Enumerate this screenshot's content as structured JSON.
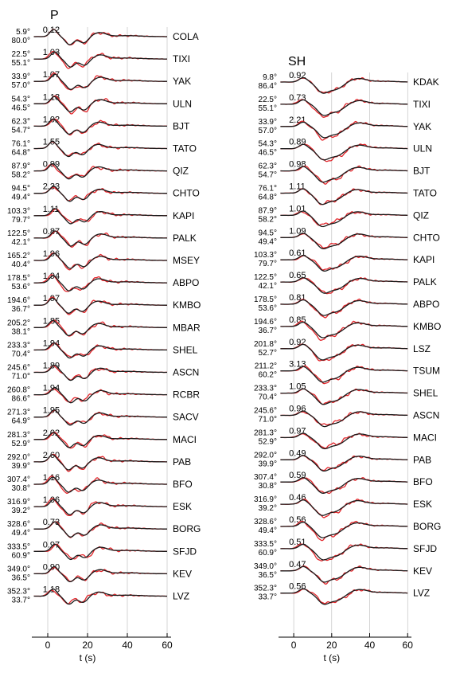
{
  "chart_data": [
    {
      "type": "line",
      "title": "P",
      "xlabel": "t (s)",
      "xlim": [
        -8,
        62
      ],
      "xticks": [
        0,
        20,
        40,
        60
      ],
      "grid": "vertical",
      "series_colors": {
        "observed": "#e3262b",
        "synthetic": "#1a1a1a"
      },
      "stations": [
        {
          "name": "COLA",
          "azimuth": "5.9°",
          "distance": "80.0°",
          "amp": "0.12"
        },
        {
          "name": "TIXI",
          "azimuth": "22.5°",
          "distance": "55.1°",
          "amp": "1.03"
        },
        {
          "name": "YAK",
          "azimuth": "33.9°",
          "distance": "57.0°",
          "amp": "1.07"
        },
        {
          "name": "ULN",
          "azimuth": "54.3°",
          "distance": "46.5°",
          "amp": "1.18"
        },
        {
          "name": "BJT",
          "azimuth": "62.3°",
          "distance": "54.7°",
          "amp": "1.02"
        },
        {
          "name": "TATO",
          "azimuth": "76.1°",
          "distance": "64.8°",
          "amp": "1.55"
        },
        {
          "name": "QIZ",
          "azimuth": "87.9°",
          "distance": "58.2°",
          "amp": "0.99"
        },
        {
          "name": "CHTO",
          "azimuth": "94.5°",
          "distance": "49.4°",
          "amp": "2.33"
        },
        {
          "name": "KAPI",
          "azimuth": "103.3°",
          "distance": "79.7°",
          "amp": "1.11"
        },
        {
          "name": "PALK",
          "azimuth": "122.5°",
          "distance": "42.1°",
          "amp": "0.87"
        },
        {
          "name": "MSEY",
          "azimuth": "165.2°",
          "distance": "40.4°",
          "amp": "1.96"
        },
        {
          "name": "ABPO",
          "azimuth": "178.5°",
          "distance": "53.6°",
          "amp": "1.94"
        },
        {
          "name": "KMBO",
          "azimuth": "194.6°",
          "distance": "36.7°",
          "amp": "1.97"
        },
        {
          "name": "MBAR",
          "azimuth": "205.2°",
          "distance": "38.1°",
          "amp": "1.85"
        },
        {
          "name": "SHEL",
          "azimuth": "233.3°",
          "distance": "70.4°",
          "amp": "1.94"
        },
        {
          "name": "ASCN",
          "azimuth": "245.6°",
          "distance": "71.0°",
          "amp": "1.89"
        },
        {
          "name": "RCBR",
          "azimuth": "260.8°",
          "distance": "86.6°",
          "amp": "1.94"
        },
        {
          "name": "SACV",
          "azimuth": "271.3°",
          "distance": "64.9°",
          "amp": "1.95"
        },
        {
          "name": "MACI",
          "azimuth": "281.3°",
          "distance": "52.9°",
          "amp": "2.02"
        },
        {
          "name": "PAB",
          "azimuth": "292.0°",
          "distance": "39.9°",
          "amp": "2.60"
        },
        {
          "name": "BFO",
          "azimuth": "307.4°",
          "distance": "30.8°",
          "amp": "1.16"
        },
        {
          "name": "ESK",
          "azimuth": "316.9°",
          "distance": "39.2°",
          "amp": "1.06"
        },
        {
          "name": "BORG",
          "azimuth": "328.6°",
          "distance": "49.4°",
          "amp": "0.73"
        },
        {
          "name": "SFJD",
          "azimuth": "333.5°",
          "distance": "60.9°",
          "amp": "0.97"
        },
        {
          "name": "KEV",
          "azimuth": "349.0°",
          "distance": "36.5°",
          "amp": "0.90"
        },
        {
          "name": "LVZ",
          "azimuth": "352.3°",
          "distance": "33.7°",
          "amp": "1.18"
        }
      ]
    },
    {
      "type": "line",
      "title": "SH",
      "xlabel": "t (s)",
      "xlim": [
        -8,
        62
      ],
      "xticks": [
        0,
        20,
        40,
        60
      ],
      "grid": "vertical",
      "series_colors": {
        "observed": "#e3262b",
        "synthetic": "#1a1a1a"
      },
      "stations": [
        {
          "name": "KDAK",
          "azimuth": "9.8°",
          "distance": "86.4°",
          "amp": "0.92"
        },
        {
          "name": "TIXI",
          "azimuth": "22.5°",
          "distance": "55.1°",
          "amp": "0.73"
        },
        {
          "name": "YAK",
          "azimuth": "33.9°",
          "distance": "57.0°",
          "amp": "2.21"
        },
        {
          "name": "ULN",
          "azimuth": "54.3°",
          "distance": "46.5°",
          "amp": "0.89"
        },
        {
          "name": "BJT",
          "azimuth": "62.3°",
          "distance": "54.7°",
          "amp": "0.98"
        },
        {
          "name": "TATO",
          "azimuth": "76.1°",
          "distance": "64.8°",
          "amp": "1.11"
        },
        {
          "name": "QIZ",
          "azimuth": "87.9°",
          "distance": "58.2°",
          "amp": "1.01"
        },
        {
          "name": "CHTO",
          "azimuth": "94.5°",
          "distance": "49.4°",
          "amp": "1.09"
        },
        {
          "name": "KAPI",
          "azimuth": "103.3°",
          "distance": "79.7°",
          "amp": "0.61"
        },
        {
          "name": "PALK",
          "azimuth": "122.5°",
          "distance": "42.1°",
          "amp": "0.65"
        },
        {
          "name": "ABPO",
          "azimuth": "178.5°",
          "distance": "53.6°",
          "amp": "0.81"
        },
        {
          "name": "KMBO",
          "azimuth": "194.6°",
          "distance": "36.7°",
          "amp": "0.85"
        },
        {
          "name": "LSZ",
          "azimuth": "201.8°",
          "distance": "52.7°",
          "amp": "0.92"
        },
        {
          "name": "TSUM",
          "azimuth": "211.2°",
          "distance": "60.2°",
          "amp": "3.13"
        },
        {
          "name": "SHEL",
          "azimuth": "233.3°",
          "distance": "70.4°",
          "amp": "1.05"
        },
        {
          "name": "ASCN",
          "azimuth": "245.6°",
          "distance": "71.0°",
          "amp": "0.96"
        },
        {
          "name": "MACI",
          "azimuth": "281.3°",
          "distance": "52.9°",
          "amp": "0.97"
        },
        {
          "name": "PAB",
          "azimuth": "292.0°",
          "distance": "39.9°",
          "amp": "0.49"
        },
        {
          "name": "BFO",
          "azimuth": "307.4°",
          "distance": "30.8°",
          "amp": "0.59"
        },
        {
          "name": "ESK",
          "azimuth": "316.9°",
          "distance": "39.2°",
          "amp": "0.46"
        },
        {
          "name": "BORG",
          "azimuth": "328.6°",
          "distance": "49.4°",
          "amp": "0.56"
        },
        {
          "name": "SFJD",
          "azimuth": "333.5°",
          "distance": "60.9°",
          "amp": "0.51"
        },
        {
          "name": "KEV",
          "azimuth": "349.0°",
          "distance": "36.5°",
          "amp": "0.47"
        },
        {
          "name": "LVZ",
          "azimuth": "352.3°",
          "distance": "33.7°",
          "amp": "0.56"
        }
      ]
    }
  ]
}
